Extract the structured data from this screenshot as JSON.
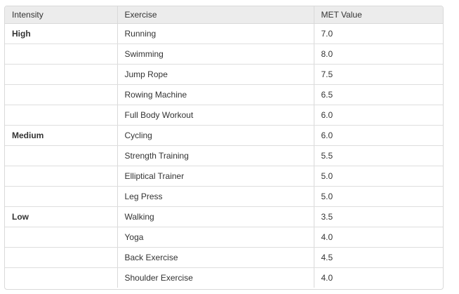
{
  "table": {
    "headers": [
      "Intensity",
      "Exercise",
      "MET Value"
    ],
    "rows": [
      {
        "intensity": "High",
        "exercise": "Running",
        "met": "7.0"
      },
      {
        "intensity": "",
        "exercise": "Swimming",
        "met": "8.0"
      },
      {
        "intensity": "",
        "exercise": "Jump Rope",
        "met": "7.5"
      },
      {
        "intensity": "",
        "exercise": "Rowing Machine",
        "met": "6.5"
      },
      {
        "intensity": "",
        "exercise": "Full Body Workout",
        "met": "6.0"
      },
      {
        "intensity": "Medium",
        "exercise": "Cycling",
        "met": "6.0"
      },
      {
        "intensity": "",
        "exercise": "Strength Training",
        "met": "5.5"
      },
      {
        "intensity": "",
        "exercise": "Elliptical Trainer",
        "met": "5.0"
      },
      {
        "intensity": "",
        "exercise": "Leg Press",
        "met": "5.0"
      },
      {
        "intensity": "Low",
        "exercise": "Walking",
        "met": "3.5"
      },
      {
        "intensity": "",
        "exercise": "Yoga",
        "met": "4.0"
      },
      {
        "intensity": "",
        "exercise": "Back Exercise",
        "met": "4.5"
      },
      {
        "intensity": "",
        "exercise": "Shoulder Exercise",
        "met": "4.0"
      }
    ]
  }
}
